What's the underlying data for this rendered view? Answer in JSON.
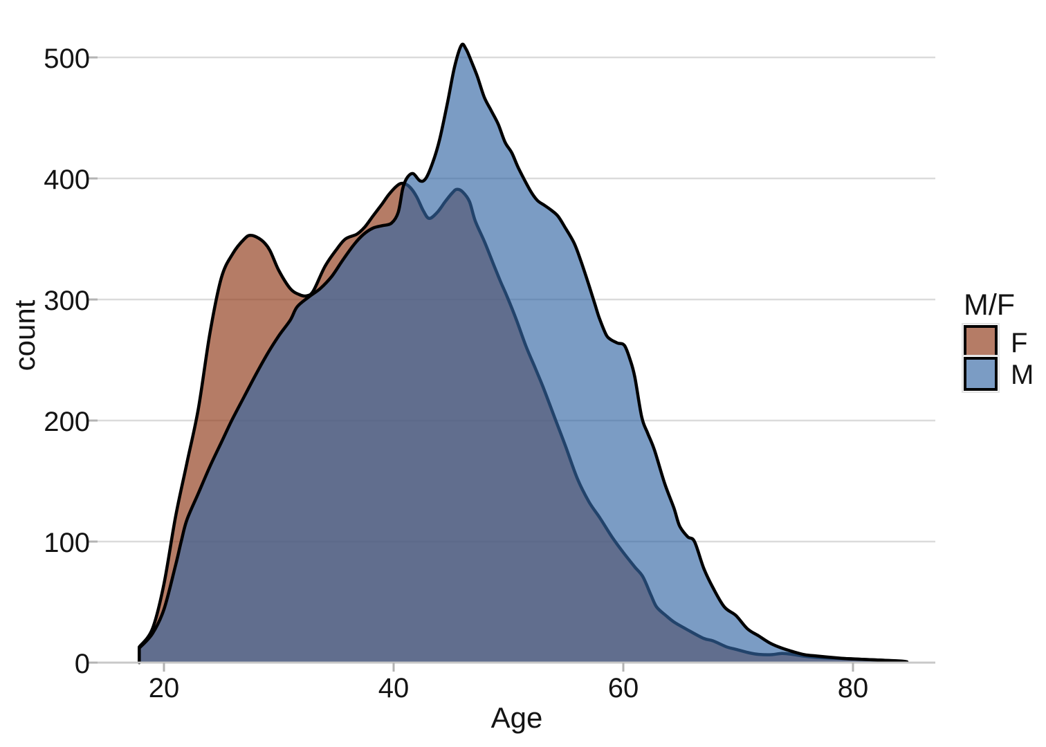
{
  "figure": {
    "title": "",
    "xlabel": "Age",
    "ylabel": "count",
    "background": "#ffffff",
    "legend": {
      "title": "M/F",
      "items": [
        {
          "label": "F"
        },
        {
          "label": "M"
        }
      ]
    }
  },
  "chart_data": {
    "type": "area",
    "subtype": "density",
    "title": "",
    "xlabel": "Age",
    "ylabel": "count",
    "x_ticks": [
      20,
      40,
      60,
      80
    ],
    "y_ticks": [
      0,
      100,
      200,
      300,
      400,
      500
    ],
    "xlim": [
      14.2,
      87.2
    ],
    "ylim": [
      0,
      525
    ],
    "grid": "horizontal",
    "legend_position": "right",
    "outline_color": "#000000",
    "series": [
      {
        "name": "F",
        "fill": "rgba(146,62,30,0.68)",
        "fill_composite_on_white": "#B57C66",
        "stroke": "#000000",
        "points": [
          [
            17.85,
            13
          ],
          [
            19,
            28
          ],
          [
            20,
            65
          ],
          [
            21,
            120
          ],
          [
            22,
            165
          ],
          [
            23,
            210
          ],
          [
            24,
            272
          ],
          [
            25,
            318
          ],
          [
            26,
            338
          ],
          [
            27,
            350
          ],
          [
            27.6,
            353
          ],
          [
            28.5,
            349
          ],
          [
            29.2,
            341
          ],
          [
            30,
            324
          ],
          [
            31,
            309
          ],
          [
            31.8,
            304
          ],
          [
            32.4,
            303
          ],
          [
            33,
            307
          ],
          [
            34,
            327
          ],
          [
            35,
            341
          ],
          [
            35.8,
            350
          ],
          [
            36.8,
            354
          ],
          [
            37.5,
            360
          ],
          [
            38.2,
            369
          ],
          [
            39,
            379
          ],
          [
            39.6,
            387
          ],
          [
            40.3,
            394
          ],
          [
            40.8,
            396
          ],
          [
            41.4,
            393
          ],
          [
            42,
            385
          ],
          [
            42.6,
            373
          ],
          [
            43.1,
            367
          ],
          [
            43.8,
            372
          ],
          [
            44.5,
            381
          ],
          [
            45.1,
            388
          ],
          [
            45.5,
            391
          ],
          [
            46,
            389
          ],
          [
            46.6,
            381
          ],
          [
            47.1,
            365
          ],
          [
            47.9,
            348
          ],
          [
            48.7,
            329
          ],
          [
            49.3,
            315
          ],
          [
            49.9,
            302
          ],
          [
            50.7,
            283
          ],
          [
            51.5,
            262
          ],
          [
            52.3,
            244
          ],
          [
            53,
            228
          ],
          [
            54,
            203
          ],
          [
            55,
            178
          ],
          [
            56,
            152
          ],
          [
            57,
            133
          ],
          [
            58,
            119
          ],
          [
            59,
            104
          ],
          [
            60,
            91
          ],
          [
            61,
            79
          ],
          [
            61.7,
            71
          ],
          [
            62.4,
            56
          ],
          [
            62.9,
            46
          ],
          [
            63.7,
            39
          ],
          [
            64.5,
            33
          ],
          [
            65.8,
            26
          ],
          [
            67,
            20
          ],
          [
            67.8,
            18
          ],
          [
            69,
            13
          ],
          [
            69.8,
            11
          ],
          [
            71,
            8
          ],
          [
            71.8,
            6.8
          ],
          [
            72.9,
            6.6
          ],
          [
            73.8,
            7.6
          ],
          [
            74.6,
            7
          ],
          [
            75.6,
            5.5
          ],
          [
            76.6,
            4.5
          ],
          [
            78,
            3.8
          ],
          [
            79.8,
            3.2
          ],
          [
            81,
            2.6
          ],
          [
            82.5,
            2
          ],
          [
            84,
            1.2
          ],
          [
            84.7,
            0.6
          ]
        ]
      },
      {
        "name": "M",
        "fill": "rgba(52,103,164,0.65)",
        "fill_composite_on_white": "#7B9CC4",
        "stroke": "#000000",
        "points": [
          [
            17.85,
            12
          ],
          [
            19,
            24
          ],
          [
            20,
            44
          ],
          [
            21,
            80
          ],
          [
            21.5,
            100
          ],
          [
            22,
            118
          ],
          [
            23,
            140
          ],
          [
            24,
            162
          ],
          [
            25,
            182
          ],
          [
            25.9,
            200
          ],
          [
            27,
            220
          ],
          [
            28,
            238
          ],
          [
            29,
            255
          ],
          [
            30,
            270
          ],
          [
            31,
            283
          ],
          [
            31.6,
            294
          ],
          [
            32.6,
            302
          ],
          [
            33.6,
            309
          ],
          [
            34.6,
            319
          ],
          [
            35.6,
            333
          ],
          [
            36.6,
            346
          ],
          [
            37.4,
            354
          ],
          [
            38.2,
            359
          ],
          [
            39,
            361
          ],
          [
            39.8,
            363
          ],
          [
            40.4,
            372
          ],
          [
            40.8,
            392
          ],
          [
            41.2,
            401
          ],
          [
            41.7,
            404
          ],
          [
            42.3,
            398
          ],
          [
            42.8,
            400
          ],
          [
            43.4,
            413
          ],
          [
            44,
            432
          ],
          [
            44.7,
            463
          ],
          [
            45.3,
            492
          ],
          [
            45.9,
            510
          ],
          [
            46.3,
            507
          ],
          [
            46.8,
            496
          ],
          [
            47.3,
            484
          ],
          [
            47.9,
            467
          ],
          [
            48.5,
            456
          ],
          [
            49.1,
            445
          ],
          [
            49.7,
            430
          ],
          [
            50.3,
            421
          ],
          [
            50.9,
            408
          ],
          [
            51.9,
            390
          ],
          [
            52.5,
            382
          ],
          [
            53.1,
            378
          ],
          [
            53.7,
            374
          ],
          [
            54.3,
            369
          ],
          [
            54.9,
            360
          ],
          [
            55.7,
            347
          ],
          [
            56.3,
            332
          ],
          [
            57,
            312
          ],
          [
            57.5,
            297
          ],
          [
            57.9,
            285
          ],
          [
            58.5,
            271
          ],
          [
            58.9,
            267
          ],
          [
            59.5,
            264
          ],
          [
            60.1,
            262
          ],
          [
            60.6,
            250
          ],
          [
            61,
            236
          ],
          [
            61.6,
            203
          ],
          [
            62.1,
            190
          ],
          [
            62.7,
            176
          ],
          [
            63.6,
            148
          ],
          [
            64.4,
            128
          ],
          [
            64.9,
            113
          ],
          [
            65.6,
            104
          ],
          [
            66.2,
            100
          ],
          [
            67,
            78
          ],
          [
            67.8,
            62
          ],
          [
            68.8,
            46
          ],
          [
            69.8,
            39
          ],
          [
            70.8,
            28
          ],
          [
            71.8,
            22
          ],
          [
            72.8,
            16
          ],
          [
            73.8,
            12
          ],
          [
            74.8,
            9
          ],
          [
            75.8,
            6.5
          ],
          [
            76.8,
            5.5
          ],
          [
            77.8,
            4.6
          ],
          [
            79,
            3.6
          ],
          [
            80,
            3
          ],
          [
            81.5,
            2.4
          ],
          [
            83,
            1.8
          ],
          [
            84.3,
            1.2
          ],
          [
            84.7,
            0.7
          ]
        ]
      }
    ]
  }
}
